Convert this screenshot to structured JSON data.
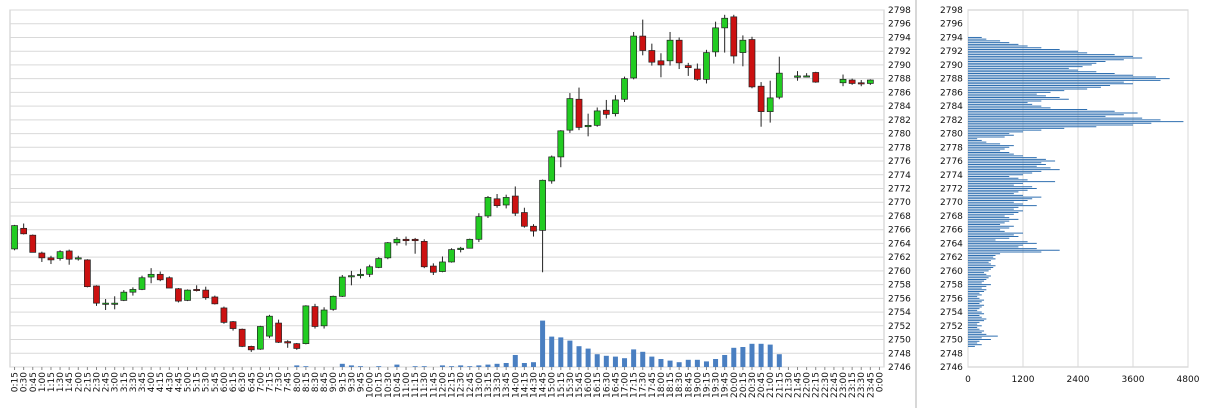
{
  "chart_data": [
    {
      "type": "candlestick",
      "title": "",
      "xlabel": "",
      "ylabel": "",
      "ylim": [
        2746,
        2798
      ],
      "y_ticks": [
        2746,
        2748,
        2750,
        2752,
        2754,
        2756,
        2758,
        2760,
        2762,
        2764,
        2766,
        2768,
        2770,
        2772,
        2774,
        2776,
        2778,
        2780,
        2782,
        2784,
        2786,
        2788,
        2790,
        2792,
        2794,
        2796,
        2798
      ],
      "x_tick_labels": [
        "0:15",
        "0:30",
        "0:45",
        "1:00",
        "1:15",
        "1:30",
        "1:45",
        "2:00",
        "2:15",
        "2:30",
        "2:45",
        "3:00",
        "3:15",
        "3:30",
        "3:45",
        "4:00",
        "4:15",
        "4:30",
        "4:45",
        "5:00",
        "5:15",
        "5:30",
        "5:45",
        "6:00",
        "6:15",
        "6:30",
        "6:45",
        "7:00",
        "7:15",
        "7:30",
        "7:45",
        "8:00",
        "8:15",
        "8:30",
        "8:45",
        "9:00",
        "9:15",
        "9:30",
        "9:45",
        "10:00",
        "10:15",
        "10:30",
        "10:45",
        "11:00",
        "11:15",
        "11:30",
        "11:45",
        "12:00",
        "12:15",
        "12:30",
        "12:45",
        "13:00",
        "13:15",
        "13:30",
        "13:45",
        "14:00",
        "14:15",
        "14:30",
        "14:45",
        "15:00",
        "15:15",
        "15:30",
        "15:45",
        "16:00",
        "16:15",
        "16:30",
        "16:45",
        "17:00",
        "17:15",
        "17:30",
        "17:45",
        "18:00",
        "18:15",
        "18:30",
        "18:45",
        "19:00",
        "19:15",
        "19:30",
        "19:45",
        "20:00",
        "20:15",
        "20:30",
        "20:45",
        "21:00",
        "21:15",
        "21:30",
        "21:45",
        "22:00",
        "22:15",
        "22:30",
        "22:45",
        "23:00",
        "23:15",
        "23:30",
        "23:45",
        "0:00"
      ],
      "grid": true,
      "up_color": "#22cc22",
      "down_color": "#cc1111",
      "volume_color": "#4a7fc1",
      "candles": [
        {
          "o": 2763.2,
          "h": 2766.7,
          "l": 2763.0,
          "c": 2766.6
        },
        {
          "o": 2766.2,
          "h": 2766.9,
          "l": 2765.3,
          "c": 2765.4
        },
        {
          "o": 2765.2,
          "h": 2765.3,
          "l": 2762.7,
          "c": 2762.7
        },
        {
          "o": 2762.6,
          "h": 2762.8,
          "l": 2761.3,
          "c": 2761.9
        },
        {
          "o": 2761.9,
          "h": 2762.2,
          "l": 2761.0,
          "c": 2761.6
        },
        {
          "o": 2761.8,
          "h": 2763.0,
          "l": 2761.5,
          "c": 2762.8
        },
        {
          "o": 2762.9,
          "h": 2763.1,
          "l": 2760.9,
          "c": 2761.7
        },
        {
          "o": 2761.8,
          "h": 2762.2,
          "l": 2761.5,
          "c": 2761.9
        },
        {
          "o": 2761.6,
          "h": 2761.7,
          "l": 2757.6,
          "c": 2757.7
        },
        {
          "o": 2757.8,
          "h": 2757.9,
          "l": 2754.9,
          "c": 2755.3
        },
        {
          "o": 2755.3,
          "h": 2755.9,
          "l": 2754.3,
          "c": 2755.3
        },
        {
          "o": 2755.3,
          "h": 2756.3,
          "l": 2754.4,
          "c": 2755.3
        },
        {
          "o": 2755.7,
          "h": 2757.2,
          "l": 2755.6,
          "c": 2756.9
        },
        {
          "o": 2756.9,
          "h": 2757.6,
          "l": 2756.4,
          "c": 2757.3
        },
        {
          "o": 2757.3,
          "h": 2759.3,
          "l": 2757.2,
          "c": 2759.0
        },
        {
          "o": 2759.1,
          "h": 2760.4,
          "l": 2758.2,
          "c": 2759.5
        },
        {
          "o": 2759.5,
          "h": 2759.9,
          "l": 2758.5,
          "c": 2758.7
        },
        {
          "o": 2759.0,
          "h": 2759.2,
          "l": 2757.5,
          "c": 2757.5
        },
        {
          "o": 2757.4,
          "h": 2757.5,
          "l": 2755.4,
          "c": 2755.6
        },
        {
          "o": 2755.7,
          "h": 2757.3,
          "l": 2755.6,
          "c": 2757.2
        },
        {
          "o": 2757.3,
          "h": 2757.9,
          "l": 2757.0,
          "c": 2757.2
        },
        {
          "o": 2757.2,
          "h": 2757.7,
          "l": 2755.8,
          "c": 2756.1
        },
        {
          "o": 2756.2,
          "h": 2756.4,
          "l": 2755.1,
          "c": 2755.2
        },
        {
          "o": 2754.6,
          "h": 2754.8,
          "l": 2752.3,
          "c": 2752.5
        },
        {
          "o": 2752.6,
          "h": 2752.7,
          "l": 2751.3,
          "c": 2751.6
        },
        {
          "o": 2751.5,
          "h": 2751.6,
          "l": 2748.9,
          "c": 2749.0
        },
        {
          "o": 2749.0,
          "h": 2749.1,
          "l": 2748.2,
          "c": 2748.5
        },
        {
          "o": 2748.6,
          "h": 2752.0,
          "l": 2748.5,
          "c": 2751.9
        },
        {
          "o": 2750.5,
          "h": 2753.6,
          "l": 2750.2,
          "c": 2753.4
        },
        {
          "o": 2752.4,
          "h": 2752.9,
          "l": 2749.5,
          "c": 2749.6
        },
        {
          "o": 2749.7,
          "h": 2749.9,
          "l": 2748.8,
          "c": 2749.5
        },
        {
          "o": 2749.4,
          "h": 2749.5,
          "l": 2748.5,
          "c": 2748.7
        },
        {
          "o": 2749.4,
          "h": 2755.0,
          "l": 2749.3,
          "c": 2754.9
        },
        {
          "o": 2754.8,
          "h": 2755.2,
          "l": 2751.6,
          "c": 2751.9
        },
        {
          "o": 2752.0,
          "h": 2754.7,
          "l": 2751.6,
          "c": 2754.3
        },
        {
          "o": 2754.4,
          "h": 2756.4,
          "l": 2754.2,
          "c": 2756.3
        },
        {
          "o": 2756.3,
          "h": 2759.4,
          "l": 2756.2,
          "c": 2759.1
        },
        {
          "o": 2759.2,
          "h": 2760.0,
          "l": 2757.9,
          "c": 2759.3
        },
        {
          "o": 2759.3,
          "h": 2760.3,
          "l": 2758.9,
          "c": 2759.5
        },
        {
          "o": 2759.5,
          "h": 2760.9,
          "l": 2759.1,
          "c": 2760.6
        },
        {
          "o": 2760.5,
          "h": 2762.0,
          "l": 2760.4,
          "c": 2761.8
        },
        {
          "o": 2761.9,
          "h": 2764.2,
          "l": 2761.7,
          "c": 2764.1
        },
        {
          "o": 2764.1,
          "h": 2764.9,
          "l": 2763.7,
          "c": 2764.6
        },
        {
          "o": 2764.6,
          "h": 2765.0,
          "l": 2763.7,
          "c": 2764.4
        },
        {
          "o": 2764.6,
          "h": 2764.8,
          "l": 2762.5,
          "c": 2764.4
        },
        {
          "o": 2764.3,
          "h": 2764.6,
          "l": 2760.4,
          "c": 2760.6
        },
        {
          "o": 2760.7,
          "h": 2761.1,
          "l": 2759.4,
          "c": 2759.8
        },
        {
          "o": 2759.9,
          "h": 2762.1,
          "l": 2759.8,
          "c": 2761.3
        },
        {
          "o": 2761.3,
          "h": 2763.3,
          "l": 2761.2,
          "c": 2763.1
        },
        {
          "o": 2763.1,
          "h": 2763.5,
          "l": 2762.7,
          "c": 2763.3
        },
        {
          "o": 2763.3,
          "h": 2764.7,
          "l": 2763.3,
          "c": 2764.6
        },
        {
          "o": 2764.6,
          "h": 2768.4,
          "l": 2764.2,
          "c": 2767.9
        },
        {
          "o": 2768.0,
          "h": 2770.9,
          "l": 2767.7,
          "c": 2770.7
        },
        {
          "o": 2770.5,
          "h": 2771.2,
          "l": 2769.2,
          "c": 2769.5
        },
        {
          "o": 2769.6,
          "h": 2771.1,
          "l": 2769.1,
          "c": 2770.7
        },
        {
          "o": 2770.9,
          "h": 2772.3,
          "l": 2768.0,
          "c": 2768.4
        },
        {
          "o": 2768.5,
          "h": 2769.2,
          "l": 2766.3,
          "c": 2766.5
        },
        {
          "o": 2766.5,
          "h": 2766.8,
          "l": 2765.0,
          "c": 2765.8
        },
        {
          "o": 2765.9,
          "h": 2773.3,
          "l": 2759.8,
          "c": 2773.2
        },
        {
          "o": 2773.1,
          "h": 2776.8,
          "l": 2772.7,
          "c": 2776.6
        },
        {
          "o": 2776.6,
          "h": 2780.5,
          "l": 2775.1,
          "c": 2780.4
        },
        {
          "o": 2780.5,
          "h": 2785.9,
          "l": 2780.1,
          "c": 2785.1
        },
        {
          "o": 2785.0,
          "h": 2786.7,
          "l": 2780.5,
          "c": 2780.9
        },
        {
          "o": 2781.0,
          "h": 2782.9,
          "l": 2779.6,
          "c": 2781.2
        },
        {
          "o": 2781.2,
          "h": 2783.8,
          "l": 2781.0,
          "c": 2783.3
        },
        {
          "o": 2783.4,
          "h": 2784.9,
          "l": 2782.2,
          "c": 2782.8
        },
        {
          "o": 2782.9,
          "h": 2785.6,
          "l": 2782.5,
          "c": 2784.9
        },
        {
          "o": 2785.0,
          "h": 2788.3,
          "l": 2784.6,
          "c": 2788.0
        },
        {
          "o": 2788.1,
          "h": 2794.8,
          "l": 2787.9,
          "c": 2794.2
        },
        {
          "o": 2794.2,
          "h": 2796.6,
          "l": 2791.4,
          "c": 2792.1
        },
        {
          "o": 2792.1,
          "h": 2793.1,
          "l": 2789.9,
          "c": 2790.4
        },
        {
          "o": 2790.6,
          "h": 2791.7,
          "l": 2788.2,
          "c": 2790.0
        },
        {
          "o": 2790.6,
          "h": 2794.8,
          "l": 2789.9,
          "c": 2793.6
        },
        {
          "o": 2793.6,
          "h": 2794.0,
          "l": 2789.4,
          "c": 2790.3
        },
        {
          "o": 2789.9,
          "h": 2790.3,
          "l": 2788.4,
          "c": 2789.6
        },
        {
          "o": 2789.4,
          "h": 2790.2,
          "l": 2787.7,
          "c": 2787.9
        },
        {
          "o": 2787.9,
          "h": 2792.2,
          "l": 2787.3,
          "c": 2791.8
        },
        {
          "o": 2791.9,
          "h": 2796.3,
          "l": 2791.2,
          "c": 2795.4
        },
        {
          "o": 2795.4,
          "h": 2797.3,
          "l": 2791.8,
          "c": 2796.8
        },
        {
          "o": 2797.0,
          "h": 2797.3,
          "l": 2790.2,
          "c": 2791.3
        },
        {
          "o": 2791.8,
          "h": 2794.3,
          "l": 2789.8,
          "c": 2793.6
        },
        {
          "o": 2793.7,
          "h": 2794.1,
          "l": 2786.6,
          "c": 2786.8
        },
        {
          "o": 2786.9,
          "h": 2787.5,
          "l": 2781.0,
          "c": 2783.2
        },
        {
          "o": 2783.2,
          "h": 2787.7,
          "l": 2781.6,
          "c": 2785.2
        },
        {
          "o": 2785.3,
          "h": 2791.2,
          "l": 2785.0,
          "c": 2788.8
        },
        null,
        {
          "o": 2788.2,
          "h": 2789.1,
          "l": 2787.7,
          "c": 2788.4
        },
        {
          "o": 2788.4,
          "h": 2788.8,
          "l": 2788.2,
          "c": 2788.4
        },
        {
          "o": 2788.9,
          "h": 2789.0,
          "l": 2787.4,
          "c": 2787.5
        },
        null,
        null,
        {
          "o": 2787.4,
          "h": 2788.6,
          "l": 2786.9,
          "c": 2787.9
        },
        {
          "o": 2787.8,
          "h": 2788.0,
          "l": 2787.1,
          "c": 2787.3
        },
        {
          "o": 2787.4,
          "h": 2787.8,
          "l": 2786.9,
          "c": 2787.3
        },
        {
          "o": 2787.3,
          "h": 2787.9,
          "l": 2787.1,
          "c": 2787.8
        },
        null
      ],
      "volume": [
        0,
        0,
        0,
        0,
        0,
        0,
        0,
        0,
        0,
        0,
        0,
        0,
        0,
        0,
        0,
        0,
        0,
        0,
        0,
        0,
        0,
        0,
        0,
        0,
        0,
        0,
        0,
        0,
        0,
        0,
        0,
        0.2,
        0.1,
        0,
        0,
        0,
        0.4,
        0.2,
        0.1,
        0,
        0.1,
        0,
        0.3,
        0,
        0.1,
        0.1,
        0,
        0.2,
        0.1,
        0.2,
        0.1,
        0.2,
        0.3,
        0.4,
        0.5,
        1.5,
        0.5,
        0.6,
        5.8,
        3.8,
        3.7,
        3.3,
        2.6,
        2.3,
        1.6,
        1.4,
        1.3,
        1.1,
        2.2,
        1.9,
        1.3,
        1.0,
        0.8,
        0.6,
        0.9,
        0.9,
        0.7,
        1.0,
        1.5,
        2.4,
        2.5,
        2.9,
        2.9,
        2.8,
        1.6,
        0,
        0,
        0,
        0,
        0,
        0,
        0,
        0,
        0,
        0,
        0
      ]
    },
    {
      "type": "bar",
      "orientation": "horizontal",
      "title": "",
      "xlabel": "",
      "ylabel": "",
      "xlim": [
        0,
        4800
      ],
      "x_ticks": [
        0,
        1200,
        2400,
        3600,
        4800
      ],
      "ylim": [
        2746,
        2798
      ],
      "y_ticks": [
        2746,
        2748,
        2750,
        2752,
        2754,
        2756,
        2758,
        2760,
        2762,
        2764,
        2766,
        2768,
        2770,
        2772,
        2774,
        2776,
        2778,
        2780,
        2782,
        2784,
        2786,
        2788,
        2790,
        2792,
        2794,
        2796,
        2798
      ],
      "bar_color": "#2f6fb0",
      "step": 0.25,
      "levels_from": 2749.0,
      "values": [
        150,
        300,
        200,
        250,
        500,
        300,
        650,
        400,
        300,
        350,
        250,
        200,
        300,
        200,
        250,
        350,
        400,
        300,
        250,
        350,
        300,
        200,
        250,
        300,
        350,
        250,
        300,
        350,
        250,
        200,
        300,
        250,
        350,
        400,
        300,
        400,
        500,
        300,
        350,
        400,
        450,
        500,
        400,
        350,
        450,
        500,
        550,
        600,
        500,
        450,
        500,
        600,
        550,
        600,
        700,
        1600,
        2000,
        1500,
        1100,
        1200,
        1500,
        1300,
        600,
        900,
        1100,
        1000,
        1200,
        800,
        700,
        900,
        1000,
        700,
        800,
        900,
        1100,
        900,
        800,
        1000,
        1100,
        1200,
        1000,
        1100,
        1500,
        1200,
        1000,
        1300,
        1400,
        1600,
        1200,
        1000,
        1100,
        1300,
        1500,
        1400,
        1000,
        1200,
        1900,
        1300,
        1100,
        900,
        1200,
        1400,
        1600,
        2000,
        1800,
        1500,
        1700,
        1600,
        1900,
        1700,
        1500,
        1200,
        1000,
        900,
        700,
        800,
        900,
        1000,
        700,
        400,
        300,
        200,
        800,
        1000,
        900,
        1200,
        1600,
        2100,
        2800,
        3600,
        4000,
        4700,
        4200,
        3800,
        3000,
        3400,
        3700,
        3200,
        2600,
        1800,
        1600,
        1400,
        1300,
        1600,
        2200,
        2000,
        1700,
        1500,
        1800,
        2100,
        2600,
        2900,
        3100,
        3600,
        3400,
        4200,
        4400,
        4100,
        3600,
        3200,
        2800,
        2400,
        2200,
        2500,
        2700,
        2800,
        3000,
        3400,
        3800,
        3600,
        3200,
        2600,
        2400,
        2000,
        1600,
        1300,
        1100,
        900,
        700,
        400,
        300
      ]
    }
  ]
}
